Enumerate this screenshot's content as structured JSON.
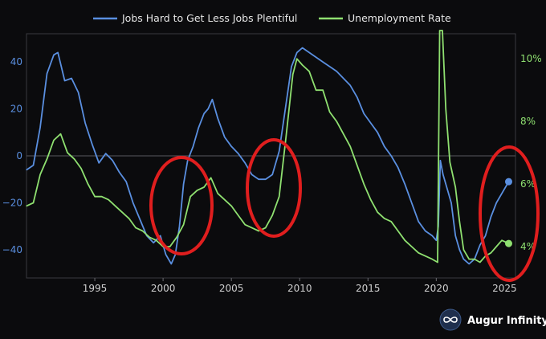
{
  "chart_data": {
    "type": "line",
    "legend": {
      "placement": "top-center"
    },
    "x_ticks": [
      1995,
      2000,
      2005,
      2010,
      2015,
      2020,
      2025
    ],
    "xlim": [
      1990.0,
      2025.8
    ],
    "y_left": {
      "ticks": [
        {
          "v": 40,
          "label": "40"
        },
        {
          "v": 20,
          "label": "20"
        },
        {
          "v": 0,
          "label": "0"
        },
        {
          "v": -20,
          "label": "−20"
        },
        {
          "v": -40,
          "label": "−40"
        }
      ],
      "ylim": [
        -52,
        52
      ]
    },
    "y_right": {
      "ticks": [
        {
          "v": 10,
          "label": "10%"
        },
        {
          "v": 8,
          "label": "8%"
        },
        {
          "v": 6,
          "label": "6%"
        },
        {
          "v": 4,
          "label": "4%"
        }
      ],
      "ylim": [
        3.0,
        10.8
      ]
    },
    "zero_line": 0,
    "grid": false,
    "series": [
      {
        "name": "Jobs Hard to Get Less Jobs Plentiful",
        "axis": "left",
        "color": "#5a8fe0",
        "points": [
          [
            1990.0,
            -6
          ],
          [
            1990.5,
            -4
          ],
          [
            1991.0,
            12
          ],
          [
            1991.5,
            35
          ],
          [
            1992.0,
            43
          ],
          [
            1992.3,
            44
          ],
          [
            1992.8,
            32
          ],
          [
            1993.3,
            33
          ],
          [
            1993.8,
            27
          ],
          [
            1994.3,
            14
          ],
          [
            1994.8,
            5
          ],
          [
            1995.3,
            -3
          ],
          [
            1995.8,
            1
          ],
          [
            1996.3,
            -2
          ],
          [
            1996.8,
            -7
          ],
          [
            1997.3,
            -11
          ],
          [
            1997.8,
            -20
          ],
          [
            1998.3,
            -27
          ],
          [
            1998.8,
            -34
          ],
          [
            1999.3,
            -37
          ],
          [
            1999.8,
            -34
          ],
          [
            2000.2,
            -42
          ],
          [
            2000.6,
            -46
          ],
          [
            2000.9,
            -42
          ],
          [
            2001.2,
            -30
          ],
          [
            2001.5,
            -12
          ],
          [
            2001.8,
            -2
          ],
          [
            2002.2,
            4
          ],
          [
            2002.6,
            12
          ],
          [
            2003.0,
            18
          ],
          [
            2003.3,
            20
          ],
          [
            2003.6,
            24
          ],
          [
            2004.0,
            16
          ],
          [
            2004.5,
            8
          ],
          [
            2005.0,
            4
          ],
          [
            2005.5,
            1
          ],
          [
            2006.0,
            -3
          ],
          [
            2006.5,
            -8
          ],
          [
            2007.0,
            -10
          ],
          [
            2007.5,
            -10
          ],
          [
            2008.0,
            -8
          ],
          [
            2008.5,
            2
          ],
          [
            2009.0,
            22
          ],
          [
            2009.4,
            38
          ],
          [
            2009.8,
            44
          ],
          [
            2010.2,
            46
          ],
          [
            2010.7,
            44
          ],
          [
            2011.2,
            42
          ],
          [
            2011.7,
            40
          ],
          [
            2012.2,
            38
          ],
          [
            2012.7,
            36
          ],
          [
            2013.2,
            33
          ],
          [
            2013.7,
            30
          ],
          [
            2014.2,
            25
          ],
          [
            2014.7,
            18
          ],
          [
            2015.2,
            14
          ],
          [
            2015.7,
            10
          ],
          [
            2016.2,
            4
          ],
          [
            2016.7,
            0
          ],
          [
            2017.2,
            -5
          ],
          [
            2017.7,
            -12
          ],
          [
            2018.2,
            -20
          ],
          [
            2018.7,
            -28
          ],
          [
            2019.2,
            -32
          ],
          [
            2019.7,
            -34
          ],
          [
            2020.0,
            -36
          ],
          [
            2020.15,
            -30
          ],
          [
            2020.3,
            -2
          ],
          [
            2020.5,
            -8
          ],
          [
            2020.8,
            -14
          ],
          [
            2021.1,
            -20
          ],
          [
            2021.4,
            -34
          ],
          [
            2021.7,
            -40
          ],
          [
            2022.0,
            -44
          ],
          [
            2022.4,
            -46
          ],
          [
            2022.8,
            -44
          ],
          [
            2023.2,
            -38
          ],
          [
            2023.6,
            -34
          ],
          [
            2024.0,
            -26
          ],
          [
            2024.4,
            -20
          ],
          [
            2024.8,
            -16
          ],
          [
            2025.3,
            -11
          ]
        ]
      },
      {
        "name": "Unemployment Rate",
        "axis": "right",
        "color": "#8fe070",
        "points": [
          [
            1990.0,
            5.3
          ],
          [
            1990.5,
            5.4
          ],
          [
            1991.0,
            6.3
          ],
          [
            1991.5,
            6.8
          ],
          [
            1992.0,
            7.4
          ],
          [
            1992.5,
            7.6
          ],
          [
            1993.0,
            7.0
          ],
          [
            1993.5,
            6.8
          ],
          [
            1994.0,
            6.5
          ],
          [
            1994.5,
            6.0
          ],
          [
            1995.0,
            5.6
          ],
          [
            1995.5,
            5.6
          ],
          [
            1996.0,
            5.5
          ],
          [
            1996.5,
            5.3
          ],
          [
            1997.0,
            5.1
          ],
          [
            1997.5,
            4.9
          ],
          [
            1998.0,
            4.6
          ],
          [
            1998.5,
            4.5
          ],
          [
            1999.0,
            4.3
          ],
          [
            1999.5,
            4.2
          ],
          [
            2000.0,
            4.0
          ],
          [
            2000.5,
            4.0
          ],
          [
            2001.0,
            4.3
          ],
          [
            2001.5,
            4.7
          ],
          [
            2002.0,
            5.6
          ],
          [
            2002.5,
            5.8
          ],
          [
            2003.0,
            5.9
          ],
          [
            2003.5,
            6.2
          ],
          [
            2004.0,
            5.7
          ],
          [
            2004.5,
            5.5
          ],
          [
            2005.0,
            5.3
          ],
          [
            2005.5,
            5.0
          ],
          [
            2006.0,
            4.7
          ],
          [
            2006.5,
            4.6
          ],
          [
            2007.0,
            4.5
          ],
          [
            2007.5,
            4.6
          ],
          [
            2008.0,
            5.0
          ],
          [
            2008.5,
            5.6
          ],
          [
            2009.0,
            7.5
          ],
          [
            2009.5,
            9.5
          ],
          [
            2009.8,
            10.0
          ],
          [
            2010.2,
            9.8
          ],
          [
            2010.7,
            9.6
          ],
          [
            2011.2,
            9.0
          ],
          [
            2011.7,
            9.0
          ],
          [
            2012.2,
            8.3
          ],
          [
            2012.7,
            8.0
          ],
          [
            2013.2,
            7.6
          ],
          [
            2013.7,
            7.2
          ],
          [
            2014.2,
            6.6
          ],
          [
            2014.7,
            6.0
          ],
          [
            2015.2,
            5.5
          ],
          [
            2015.7,
            5.1
          ],
          [
            2016.2,
            4.9
          ],
          [
            2016.7,
            4.8
          ],
          [
            2017.2,
            4.5
          ],
          [
            2017.7,
            4.2
          ],
          [
            2018.2,
            4.0
          ],
          [
            2018.7,
            3.8
          ],
          [
            2019.2,
            3.7
          ],
          [
            2019.7,
            3.6
          ],
          [
            2020.1,
            3.5
          ],
          [
            2020.25,
            14.7
          ],
          [
            2020.45,
            11.0
          ],
          [
            2020.7,
            8.4
          ],
          [
            2021.0,
            6.7
          ],
          [
            2021.4,
            5.9
          ],
          [
            2021.7,
            4.8
          ],
          [
            2022.0,
            3.9
          ],
          [
            2022.4,
            3.6
          ],
          [
            2022.8,
            3.6
          ],
          [
            2023.2,
            3.5
          ],
          [
            2023.6,
            3.7
          ],
          [
            2024.0,
            3.8
          ],
          [
            2024.4,
            4.0
          ],
          [
            2024.8,
            4.2
          ],
          [
            2025.3,
            4.1
          ]
        ]
      }
    ]
  },
  "brand": {
    "name": "Augur Infinity"
  }
}
